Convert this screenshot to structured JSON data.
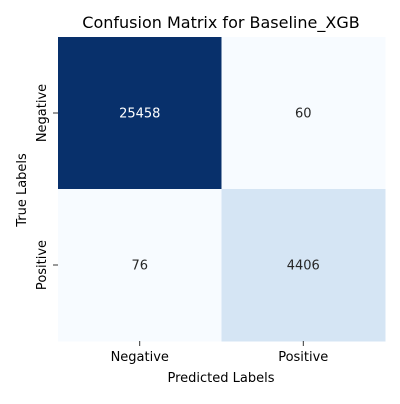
{
  "chart_data": {
    "type": "heatmap",
    "title": "Confusion Matrix for Baseline_XGB",
    "xlabel": "Predicted Labels",
    "ylabel": "True Labels",
    "x_categories": [
      "Negative",
      "Positive"
    ],
    "y_categories": [
      "Negative",
      "Positive"
    ],
    "values": [
      [
        25458,
        60
      ],
      [
        76,
        4406
      ]
    ],
    "colormap": "Blues",
    "colors": {
      "max": "#08306b",
      "light_high": "#d3e3f3",
      "low": "#f7fbff",
      "text_on_dark": "#ffffff",
      "text_on_light": "#262626"
    },
    "colorbar": false,
    "grid": false
  }
}
